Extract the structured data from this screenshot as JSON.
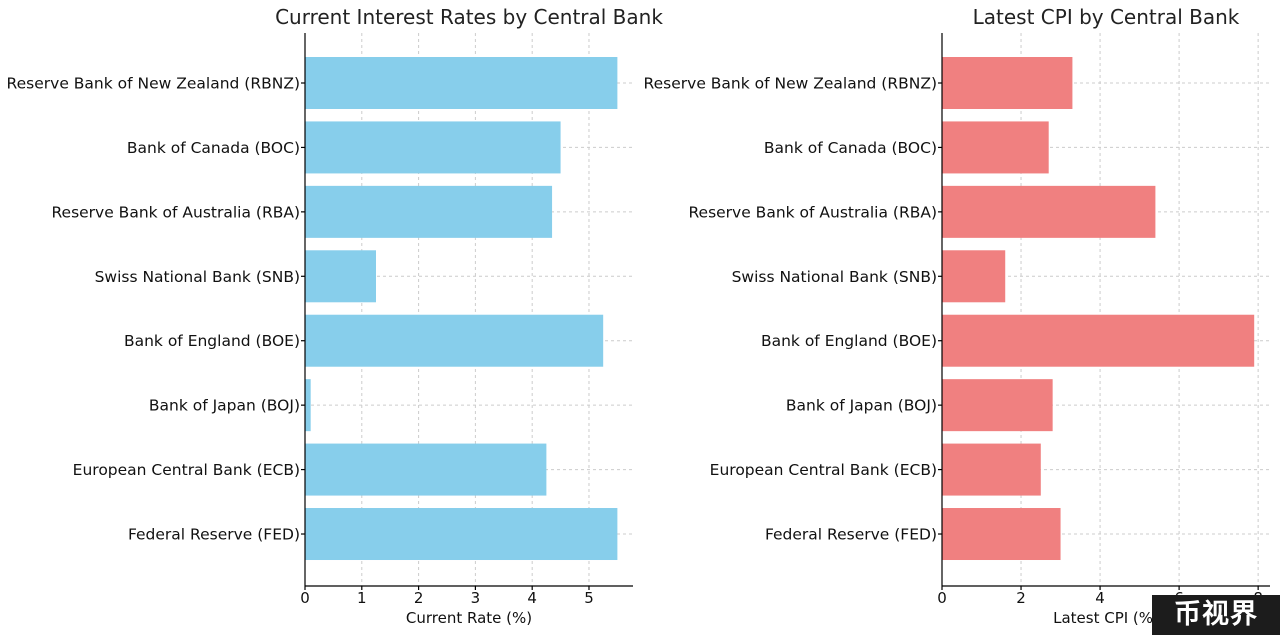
{
  "chart_data": [
    {
      "type": "bar",
      "orientation": "horizontal",
      "title": "Current Interest Rates by Central Bank",
      "xlabel": "Current Rate (%)",
      "ylabel": "",
      "categories": [
        "Reserve Bank of New Zealand (RBNZ)",
        "Bank of Canada (BOC)",
        "Reserve Bank of Australia (RBA)",
        "Swiss National Bank (SNB)",
        "Bank of England (BOE)",
        "Bank of Japan (BOJ)",
        "European Central Bank (ECB)",
        "Federal Reserve (FED)"
      ],
      "values": [
        5.5,
        4.5,
        4.35,
        1.25,
        5.25,
        0.1,
        4.25,
        5.5
      ],
      "xlim": [
        0,
        5.775
      ],
      "xticks": [
        0,
        1,
        2,
        3,
        4,
        5
      ],
      "grid": true,
      "color": "#87CEEB"
    },
    {
      "type": "bar",
      "orientation": "horizontal",
      "title": "Latest CPI by Central Bank",
      "xlabel": "Latest CPI (%)",
      "ylabel": "",
      "categories": [
        "Reserve Bank of New Zealand (RBNZ)",
        "Bank of Canada (BOC)",
        "Reserve Bank of Australia (RBA)",
        "Swiss National Bank (SNB)",
        "Bank of England (BOE)",
        "Bank of Japan (BOJ)",
        "European Central Bank (ECB)",
        "Federal Reserve (FED)"
      ],
      "values": [
        3.3,
        2.7,
        5.4,
        1.6,
        7.9,
        2.8,
        2.5,
        3.0
      ],
      "xlim": [
        0,
        8.3
      ],
      "xticks": [
        0,
        2,
        4,
        6,
        8
      ],
      "grid": true,
      "color": "#F08080"
    }
  ],
  "watermark": "币视界"
}
